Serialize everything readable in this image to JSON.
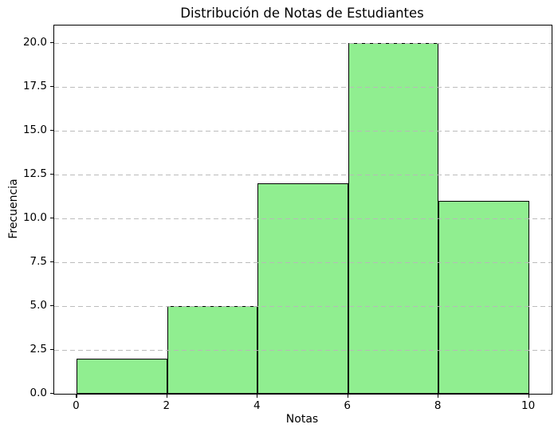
{
  "chart_data": {
    "type": "bar",
    "subtype": "histogram",
    "title": "Distribución de Notas de Estudiantes",
    "xlabel": "Notas",
    "ylabel": "Frecuencia",
    "bin_edges": [
      0,
      2,
      4,
      6,
      8,
      10
    ],
    "frequencies": [
      2,
      5,
      12,
      20,
      11
    ],
    "categories": [
      "0-2",
      "2-4",
      "4-6",
      "6-8",
      "8-10"
    ],
    "values": [
      2,
      5,
      12,
      20,
      11
    ],
    "xlim": [
      -0.5,
      10.5
    ],
    "ylim": [
      0,
      21
    ],
    "xticks": [
      0,
      2,
      4,
      6,
      8,
      10
    ],
    "xtick_labels": [
      "0",
      "2",
      "4",
      "6",
      "8",
      "10"
    ],
    "yticks": [
      0,
      2.5,
      5,
      7.5,
      10,
      12.5,
      15,
      17.5,
      20
    ],
    "ytick_labels": [
      "0.0",
      "2.5",
      "5.0",
      "7.5",
      "10.0",
      "12.5",
      "15.0",
      "17.5",
      "20.0"
    ],
    "grid": "horizontal-dashed",
    "legend": "none",
    "colors": {
      "bar_fill": "#90ee90",
      "bar_edge": "#000000",
      "grid_line": "#b8b8b8",
      "spine": "#000000",
      "background": "#ffffff",
      "text": "#000000"
    }
  }
}
